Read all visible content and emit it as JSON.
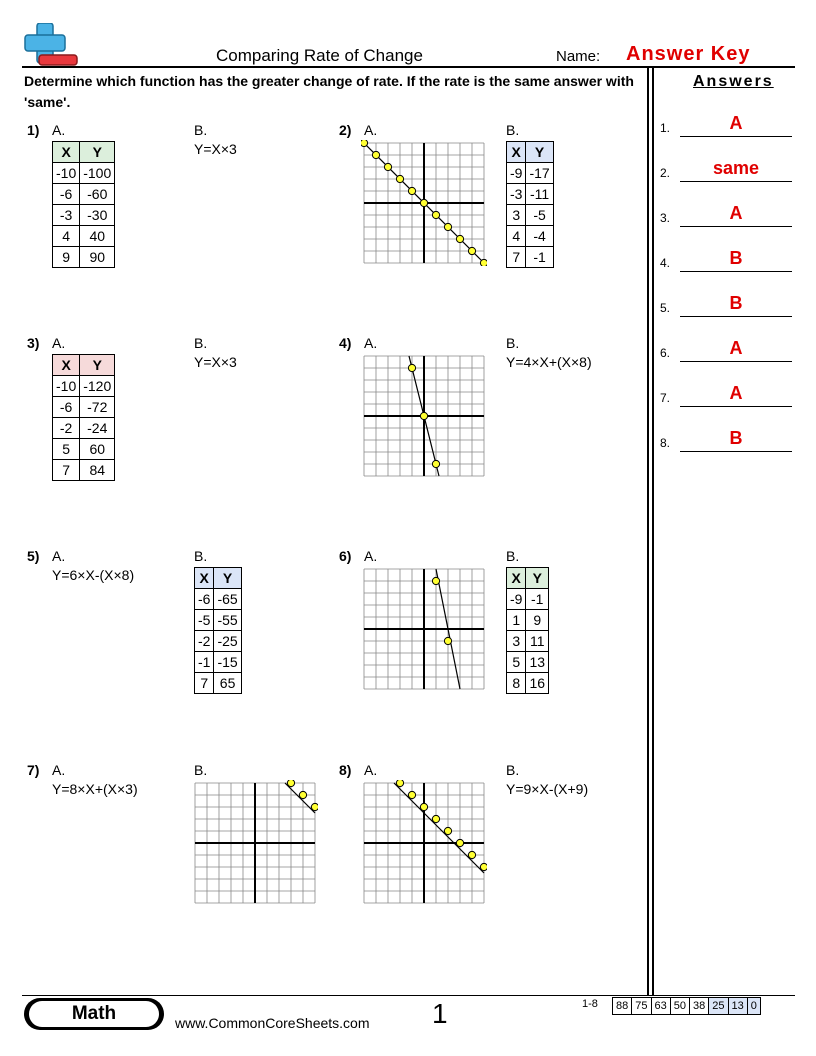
{
  "header": {
    "title": "Comparing Rate of Change",
    "name_label": "Name:",
    "name_value": "Answer Key"
  },
  "instructions": "Determine which function has the greater change of rate. If the rate is the same answer with 'same'.",
  "answers": {
    "title": "Answers",
    "items": [
      {
        "num": "1.",
        "value": "A"
      },
      {
        "num": "2.",
        "value": "same"
      },
      {
        "num": "3.",
        "value": "A"
      },
      {
        "num": "4.",
        "value": "B"
      },
      {
        "num": "5.",
        "value": "B"
      },
      {
        "num": "6.",
        "value": "A"
      },
      {
        "num": "7.",
        "value": "A"
      },
      {
        "num": "8.",
        "value": "B"
      }
    ]
  },
  "colors": {
    "answer": "#e00000",
    "green_header": "#dcefdc",
    "blue_header": "#dbe5f7",
    "red_header": "#f6dada",
    "point_fill": "#ffff33"
  },
  "problems": [
    {
      "num": "1)",
      "a_label": "A.",
      "b_label": "B.",
      "a": {
        "type": "table",
        "header_color": "green",
        "headers": [
          "X",
          "Y"
        ],
        "rows": [
          [
            "-10",
            "-100"
          ],
          [
            "-6",
            "-60"
          ],
          [
            "-3",
            "-30"
          ],
          [
            "4",
            "40"
          ],
          [
            "9",
            "90"
          ]
        ]
      },
      "b": {
        "type": "equation",
        "text": "Y=X×3"
      }
    },
    {
      "num": "2)",
      "a_label": "A.",
      "b_label": "B.",
      "a": {
        "type": "graph",
        "line": [
          [
            -6,
            6
          ],
          [
            5,
            -5
          ]
        ],
        "points": [
          [
            -6,
            6
          ],
          [
            -5,
            5
          ],
          [
            -4,
            4
          ],
          [
            -3,
            3
          ],
          [
            -2,
            2
          ],
          [
            -1,
            1
          ],
          [
            0,
            0
          ],
          [
            1,
            -1
          ],
          [
            2,
            -2
          ],
          [
            3,
            -3
          ],
          [
            4,
            -4
          ],
          [
            5,
            -5
          ]
        ]
      },
      "b": {
        "type": "table",
        "header_color": "blue",
        "headers": [
          "X",
          "Y"
        ],
        "rows": [
          [
            "-9",
            "-17"
          ],
          [
            "-3",
            "-11"
          ],
          [
            "3",
            "-5"
          ],
          [
            "4",
            "-4"
          ],
          [
            "7",
            "-1"
          ]
        ]
      }
    },
    {
      "num": "3)",
      "a_label": "A.",
      "b_label": "B.",
      "a": {
        "type": "table",
        "header_color": "red",
        "headers": [
          "X",
          "Y"
        ],
        "rows": [
          [
            "-10",
            "-120"
          ],
          [
            "-6",
            "-72"
          ],
          [
            "-2",
            "-24"
          ],
          [
            "5",
            "60"
          ],
          [
            "7",
            "84"
          ]
        ]
      },
      "b": {
        "type": "equation",
        "text": "Y=X×3"
      }
    },
    {
      "num": "4)",
      "a_label": "A.",
      "b_label": "B.",
      "a": {
        "type": "graph",
        "line": [
          [
            -1.25,
            5
          ],
          [
            1.25,
            -5
          ]
        ],
        "points": [
          [
            -1,
            4
          ],
          [
            0,
            0
          ],
          [
            1,
            -4
          ]
        ]
      },
      "b": {
        "type": "equation",
        "text": "Y=4×X+(X×8)"
      }
    },
    {
      "num": "5)",
      "a_label": "A.",
      "b_label": "B.",
      "a": {
        "type": "equation",
        "text": "Y=6×X-(X×8)"
      },
      "b": {
        "type": "table",
        "header_color": "blue",
        "headers": [
          "X",
          "Y"
        ],
        "rows": [
          [
            "-6",
            "-65"
          ],
          [
            "-5",
            "-55"
          ],
          [
            "-2",
            "-25"
          ],
          [
            "-1",
            "-15"
          ],
          [
            "7",
            "65"
          ]
        ]
      }
    },
    {
      "num": "6)",
      "a_label": "A.",
      "b_label": "B.",
      "a": {
        "type": "graph",
        "line": [
          [
            1,
            5
          ],
          [
            3,
            -5
          ]
        ],
        "points": [
          [
            1,
            4
          ],
          [
            2,
            -1
          ]
        ]
      },
      "b": {
        "type": "table",
        "header_color": "green",
        "headers": [
          "X",
          "Y"
        ],
        "rows": [
          [
            "-9",
            "-1"
          ],
          [
            "1",
            "9"
          ],
          [
            "3",
            "11"
          ],
          [
            "5",
            "13"
          ],
          [
            "8",
            "16"
          ]
        ]
      }
    },
    {
      "num": "7)",
      "a_label": "A.",
      "b_label": "B.",
      "a": {
        "type": "equation",
        "text": "Y=8×X+(X×3)"
      },
      "b": {
        "type": "graph",
        "line": [
          [
            2.5,
            5
          ],
          [
            5,
            2.5
          ]
        ],
        "points": [
          [
            3,
            5
          ],
          [
            4,
            4
          ],
          [
            5,
            3
          ]
        ]
      }
    },
    {
      "num": "8)",
      "a_label": "A.",
      "b_label": "B.",
      "a": {
        "type": "graph",
        "line": [
          [
            -2.5,
            5
          ],
          [
            5,
            -2.5
          ]
        ],
        "points": [
          [
            -2,
            5
          ],
          [
            -1,
            4
          ],
          [
            0,
            3
          ],
          [
            1,
            2
          ],
          [
            2,
            1
          ],
          [
            3,
            0
          ],
          [
            4,
            -1
          ],
          [
            5,
            -2
          ]
        ]
      },
      "b": {
        "type": "equation",
        "text": "Y=9×X-(X+9)"
      }
    }
  ],
  "footer": {
    "subject": "Math",
    "url": "www.CommonCoreSheets.com",
    "page": "1",
    "range": "1-8",
    "scores": [
      "88",
      "75",
      "63",
      "50",
      "38",
      "25",
      "13",
      "0"
    ]
  }
}
